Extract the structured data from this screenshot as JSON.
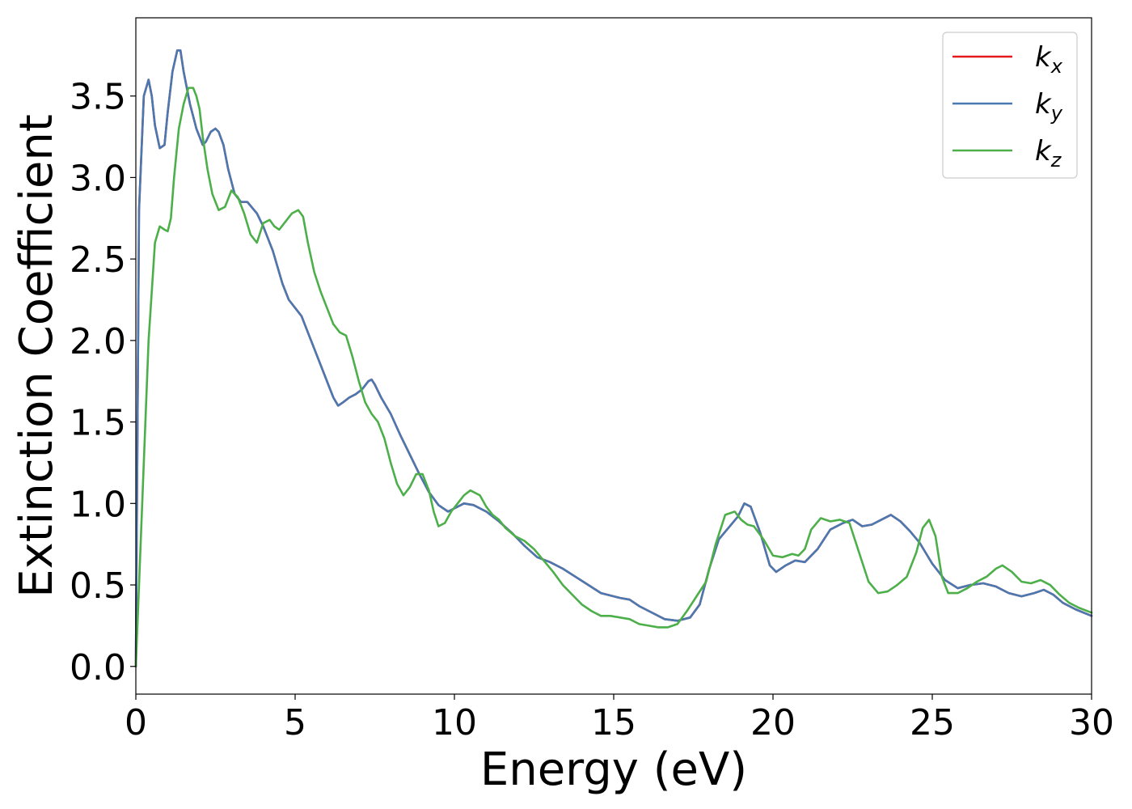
{
  "chart_data": {
    "type": "line",
    "xlabel": "Energy (eV)",
    "ylabel": "Extinction Coefficient",
    "xlim": [
      0,
      30
    ],
    "ylim": [
      -0.17,
      3.98
    ],
    "xticks": [
      0,
      5,
      10,
      15,
      20,
      25,
      30
    ],
    "xtick_labels": [
      "0",
      "5",
      "10",
      "15",
      "20",
      "25",
      "30"
    ],
    "yticks": [
      0.0,
      0.5,
      1.0,
      1.5,
      2.0,
      2.5,
      3.0,
      3.5
    ],
    "ytick_labels": [
      "0.0",
      "0.5",
      "1.0",
      "1.5",
      "2.0",
      "2.5",
      "3.0",
      "3.5"
    ],
    "grid": false,
    "legend_position": "top-right",
    "series": [
      {
        "name": "k",
        "subscript": "x",
        "color": "#e41a1c",
        "x": [
          0,
          0.1,
          0.25,
          0.4,
          0.5,
          0.6,
          0.75,
          0.9,
          1.0,
          1.15,
          1.3,
          1.4,
          1.5,
          1.7,
          1.9,
          2.1,
          2.2,
          2.35,
          2.5,
          2.6,
          2.75,
          2.9,
          3.1,
          3.3,
          3.5,
          3.8,
          4.0,
          4.3,
          4.6,
          4.8,
          5.0,
          5.2,
          5.4,
          5.6,
          5.8,
          6.0,
          6.2,
          6.35,
          6.5,
          6.7,
          6.9,
          7.1,
          7.3,
          7.4,
          7.5,
          7.7,
          8.0,
          8.3,
          8.6,
          8.9,
          9.2,
          9.5,
          9.8,
          10.0,
          10.3,
          10.6,
          11.0,
          11.4,
          11.8,
          12.2,
          12.6,
          13.0,
          13.4,
          13.8,
          14.2,
          14.6,
          15.0,
          15.2,
          15.5,
          15.8,
          16.2,
          16.6,
          17.0,
          17.4,
          17.7,
          18.0,
          18.3,
          18.6,
          18.9,
          19.1,
          19.3,
          19.6,
          19.9,
          20.1,
          20.4,
          20.7,
          21.0,
          21.4,
          21.8,
          22.2,
          22.5,
          22.8,
          23.1,
          23.4,
          23.7,
          24.0,
          24.3,
          24.6,
          25.0,
          25.4,
          25.8,
          26.2,
          26.6,
          27.0,
          27.4,
          27.8,
          28.2,
          28.5,
          28.8,
          29.1,
          29.5,
          30.0
        ],
        "y": [
          0.0,
          2.8,
          3.5,
          3.6,
          3.5,
          3.32,
          3.18,
          3.2,
          3.4,
          3.65,
          3.78,
          3.78,
          3.65,
          3.45,
          3.3,
          3.2,
          3.22,
          3.28,
          3.3,
          3.28,
          3.2,
          3.05,
          2.9,
          2.85,
          2.85,
          2.78,
          2.7,
          2.55,
          2.35,
          2.25,
          2.2,
          2.15,
          2.05,
          1.95,
          1.85,
          1.75,
          1.65,
          1.6,
          1.62,
          1.65,
          1.67,
          1.7,
          1.75,
          1.76,
          1.73,
          1.65,
          1.55,
          1.42,
          1.3,
          1.18,
          1.07,
          0.99,
          0.95,
          0.97,
          1.0,
          0.99,
          0.95,
          0.89,
          0.82,
          0.74,
          0.67,
          0.64,
          0.6,
          0.55,
          0.5,
          0.45,
          0.43,
          0.42,
          0.41,
          0.37,
          0.33,
          0.29,
          0.28,
          0.3,
          0.38,
          0.6,
          0.78,
          0.85,
          0.92,
          1.0,
          0.98,
          0.82,
          0.62,
          0.58,
          0.62,
          0.65,
          0.64,
          0.72,
          0.84,
          0.88,
          0.9,
          0.86,
          0.87,
          0.9,
          0.93,
          0.89,
          0.83,
          0.76,
          0.63,
          0.53,
          0.48,
          0.5,
          0.51,
          0.49,
          0.45,
          0.43,
          0.45,
          0.47,
          0.44,
          0.39,
          0.35,
          0.31
        ]
      },
      {
        "name": "k",
        "subscript": "y",
        "color": "#4a78b0",
        "x": [
          0,
          0.1,
          0.25,
          0.4,
          0.5,
          0.6,
          0.75,
          0.9,
          1.0,
          1.15,
          1.3,
          1.4,
          1.5,
          1.7,
          1.9,
          2.1,
          2.2,
          2.35,
          2.5,
          2.6,
          2.75,
          2.9,
          3.1,
          3.3,
          3.5,
          3.8,
          4.0,
          4.3,
          4.6,
          4.8,
          5.0,
          5.2,
          5.4,
          5.6,
          5.8,
          6.0,
          6.2,
          6.35,
          6.5,
          6.7,
          6.9,
          7.1,
          7.3,
          7.4,
          7.5,
          7.7,
          8.0,
          8.3,
          8.6,
          8.9,
          9.2,
          9.5,
          9.8,
          10.0,
          10.3,
          10.6,
          11.0,
          11.4,
          11.8,
          12.2,
          12.6,
          13.0,
          13.4,
          13.8,
          14.2,
          14.6,
          15.0,
          15.2,
          15.5,
          15.8,
          16.2,
          16.6,
          17.0,
          17.4,
          17.7,
          18.0,
          18.3,
          18.6,
          18.9,
          19.1,
          19.3,
          19.6,
          19.9,
          20.1,
          20.4,
          20.7,
          21.0,
          21.4,
          21.8,
          22.2,
          22.5,
          22.8,
          23.1,
          23.4,
          23.7,
          24.0,
          24.3,
          24.6,
          25.0,
          25.4,
          25.8,
          26.2,
          26.6,
          27.0,
          27.4,
          27.8,
          28.2,
          28.5,
          28.8,
          29.1,
          29.5,
          30.0
        ],
        "y": [
          0.0,
          2.8,
          3.5,
          3.6,
          3.5,
          3.32,
          3.18,
          3.2,
          3.4,
          3.65,
          3.78,
          3.78,
          3.65,
          3.45,
          3.3,
          3.2,
          3.22,
          3.28,
          3.3,
          3.28,
          3.2,
          3.05,
          2.9,
          2.85,
          2.85,
          2.78,
          2.7,
          2.55,
          2.35,
          2.25,
          2.2,
          2.15,
          2.05,
          1.95,
          1.85,
          1.75,
          1.65,
          1.6,
          1.62,
          1.65,
          1.67,
          1.7,
          1.75,
          1.76,
          1.73,
          1.65,
          1.55,
          1.42,
          1.3,
          1.18,
          1.07,
          0.99,
          0.95,
          0.97,
          1.0,
          0.99,
          0.95,
          0.89,
          0.82,
          0.74,
          0.67,
          0.64,
          0.6,
          0.55,
          0.5,
          0.45,
          0.43,
          0.42,
          0.41,
          0.37,
          0.33,
          0.29,
          0.28,
          0.3,
          0.38,
          0.6,
          0.78,
          0.85,
          0.92,
          1.0,
          0.98,
          0.82,
          0.62,
          0.58,
          0.62,
          0.65,
          0.64,
          0.72,
          0.84,
          0.88,
          0.9,
          0.86,
          0.87,
          0.9,
          0.93,
          0.89,
          0.83,
          0.76,
          0.63,
          0.53,
          0.48,
          0.5,
          0.51,
          0.49,
          0.45,
          0.43,
          0.45,
          0.47,
          0.44,
          0.39,
          0.35,
          0.31
        ]
      },
      {
        "name": "k",
        "subscript": "z",
        "color": "#4daf4a",
        "x": [
          0,
          0.2,
          0.4,
          0.6,
          0.75,
          0.9,
          1.0,
          1.1,
          1.2,
          1.35,
          1.5,
          1.65,
          1.8,
          1.9,
          2.0,
          2.1,
          2.25,
          2.4,
          2.6,
          2.8,
          3.0,
          3.2,
          3.4,
          3.6,
          3.8,
          4.0,
          4.2,
          4.35,
          4.5,
          4.7,
          4.9,
          5.1,
          5.25,
          5.4,
          5.6,
          5.8,
          6.0,
          6.2,
          6.4,
          6.6,
          6.8,
          7.0,
          7.2,
          7.4,
          7.6,
          7.8,
          8.0,
          8.2,
          8.4,
          8.6,
          8.8,
          9.0,
          9.2,
          9.35,
          9.5,
          9.7,
          9.9,
          10.1,
          10.3,
          10.5,
          10.8,
          11.0,
          11.2,
          11.4,
          11.6,
          11.9,
          12.2,
          12.5,
          12.8,
          13.1,
          13.4,
          13.7,
          14.0,
          14.3,
          14.6,
          14.9,
          15.2,
          15.5,
          15.8,
          16.1,
          16.4,
          16.7,
          17.0,
          17.3,
          17.6,
          17.9,
          18.2,
          18.5,
          18.8,
          19.0,
          19.2,
          19.4,
          19.7,
          20.0,
          20.3,
          20.6,
          20.8,
          21.0,
          21.2,
          21.5,
          21.8,
          22.1,
          22.4,
          22.7,
          23.0,
          23.3,
          23.6,
          23.9,
          24.2,
          24.5,
          24.7,
          24.9,
          25.1,
          25.3,
          25.5,
          25.8,
          26.1,
          26.4,
          26.7,
          27.0,
          27.2,
          27.5,
          27.8,
          28.1,
          28.4,
          28.7,
          29.0,
          29.3,
          29.6,
          30.0
        ],
        "y": [
          0.0,
          1.0,
          2.0,
          2.6,
          2.7,
          2.68,
          2.67,
          2.75,
          3.0,
          3.3,
          3.45,
          3.55,
          3.55,
          3.5,
          3.42,
          3.25,
          3.05,
          2.9,
          2.8,
          2.82,
          2.92,
          2.88,
          2.78,
          2.65,
          2.6,
          2.72,
          2.74,
          2.7,
          2.68,
          2.73,
          2.78,
          2.8,
          2.76,
          2.6,
          2.42,
          2.3,
          2.2,
          2.1,
          2.05,
          2.03,
          1.9,
          1.75,
          1.62,
          1.55,
          1.5,
          1.4,
          1.25,
          1.12,
          1.05,
          1.1,
          1.18,
          1.18,
          1.08,
          0.95,
          0.86,
          0.88,
          0.95,
          1.0,
          1.05,
          1.08,
          1.05,
          0.98,
          0.93,
          0.9,
          0.85,
          0.8,
          0.77,
          0.72,
          0.65,
          0.58,
          0.5,
          0.44,
          0.38,
          0.34,
          0.31,
          0.31,
          0.3,
          0.29,
          0.26,
          0.25,
          0.24,
          0.24,
          0.26,
          0.34,
          0.43,
          0.52,
          0.75,
          0.93,
          0.95,
          0.9,
          0.87,
          0.86,
          0.78,
          0.68,
          0.67,
          0.69,
          0.68,
          0.72,
          0.84,
          0.91,
          0.89,
          0.9,
          0.88,
          0.7,
          0.52,
          0.45,
          0.46,
          0.5,
          0.55,
          0.7,
          0.85,
          0.9,
          0.8,
          0.55,
          0.45,
          0.45,
          0.48,
          0.52,
          0.55,
          0.6,
          0.62,
          0.58,
          0.52,
          0.51,
          0.53,
          0.5,
          0.44,
          0.39,
          0.36,
          0.33
        ]
      }
    ]
  }
}
